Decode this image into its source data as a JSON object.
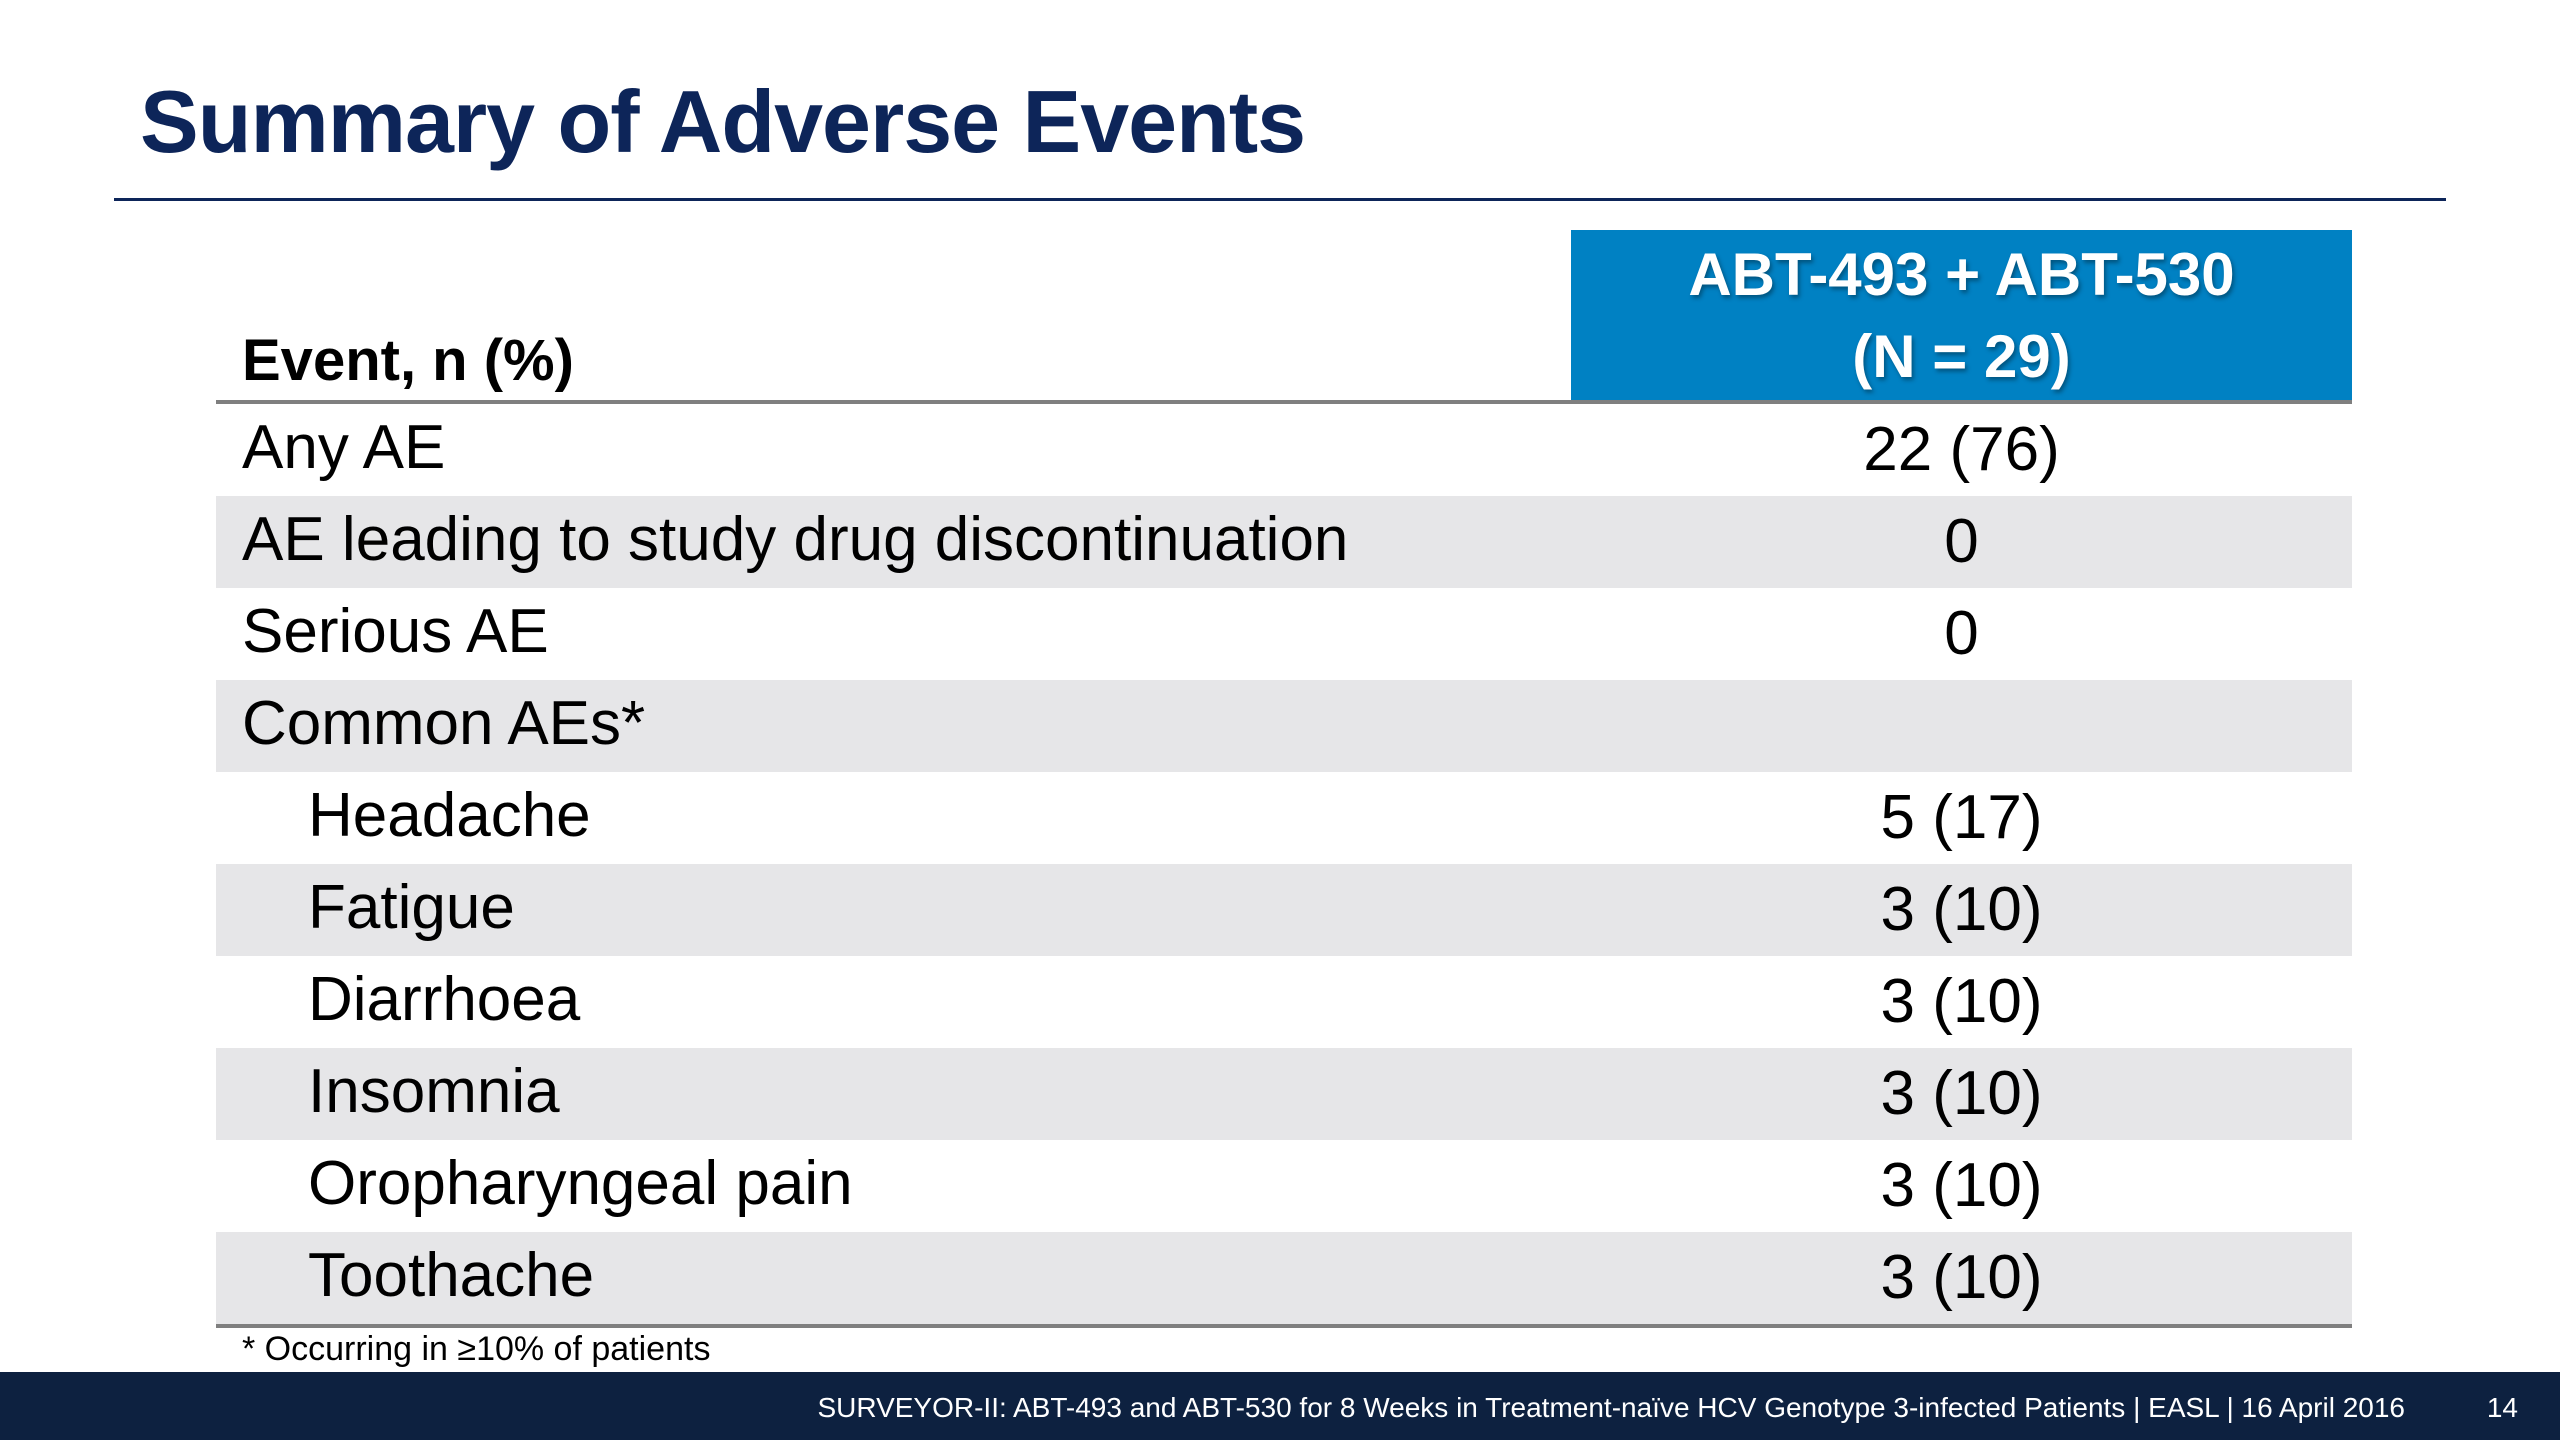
{
  "slide": {
    "title": "Summary of Adverse Events"
  },
  "table": {
    "header": {
      "event_label": "Event, n (%)",
      "column_line1": "ABT-493 + ABT-530",
      "column_line2": "(N = 29)"
    },
    "rows": [
      {
        "label": "Any AE",
        "value": "22 (76)"
      },
      {
        "label": "AE leading to study drug discontinuation",
        "value": "0"
      },
      {
        "label": "Serious AE",
        "value": "0"
      },
      {
        "label": "Common AEs*",
        "value": ""
      },
      {
        "label": "Headache",
        "value": "5 (17)"
      },
      {
        "label": "Fatigue",
        "value": "3 (10)"
      },
      {
        "label": "Diarrhoea",
        "value": "3 (10)"
      },
      {
        "label": "Insomnia",
        "value": "3 (10)"
      },
      {
        "label": "Oropharyngeal pain",
        "value": "3 (10)"
      },
      {
        "label": "Toothache",
        "value": "3 (10)"
      }
    ],
    "footnote": "* Occurring in ≥10% of patients"
  },
  "footer": {
    "text": "SURVEYOR-II: ABT-493 and ABT-530 for 8 Weeks in Treatment-naïve HCV Genotype 3-infected Patients  | EASL | 16 April 2016",
    "page_number": "14"
  },
  "colors": {
    "title": "#0d2559",
    "header_fill": "#0081c3",
    "alt_row": "#e6e6e8",
    "footer_bar": "#0d2140"
  }
}
